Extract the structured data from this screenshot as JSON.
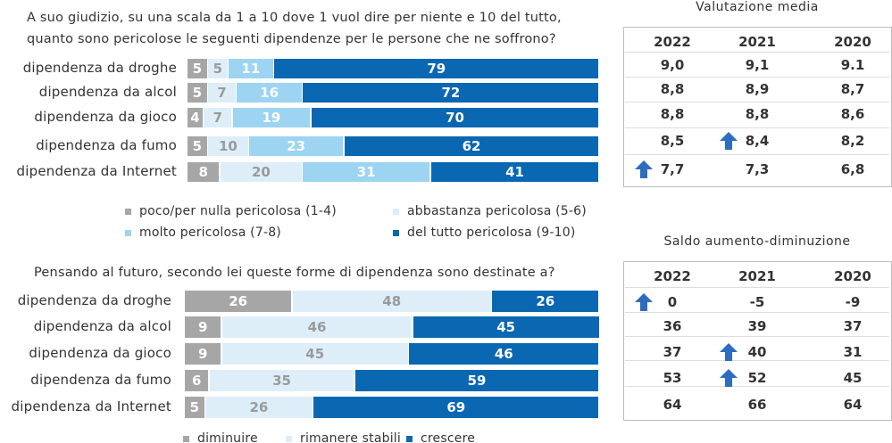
{
  "chart_data": [
    {
      "type": "bar",
      "orientation": "horizontal",
      "stacked": true,
      "title": "A suo giudizio, su una scala da 1 a 10 dove 1 vuol dire per niente e 10 del tutto, quanto sono pericolose le seguenti dipendenze per le persone che ne soffrono?",
      "categories": [
        "dipendenza da droghe",
        "dipendenza da alcol",
        "dipendenza da gioco",
        "dipendenza da fumo",
        "dipendenza da Internet"
      ],
      "series": [
        {
          "name": "poco/per nulla pericolosa (1-4)",
          "color": "#a6a6a6",
          "values": [
            5,
            5,
            4,
            5,
            8
          ]
        },
        {
          "name": "abbastanza pericolosa (5-6)",
          "color": "#ddeef9",
          "values": [
            5,
            7,
            7,
            10,
            20
          ]
        },
        {
          "name": "molto pericolosa (7-8)",
          "color": "#9dd4f2",
          "values": [
            11,
            16,
            19,
            23,
            31
          ]
        },
        {
          "name": "del tutto pericolosa (9-10)",
          "color": "#0a67b2",
          "values": [
            79,
            72,
            70,
            62,
            41
          ]
        }
      ]
    },
    {
      "type": "bar",
      "orientation": "horizontal",
      "stacked": true,
      "title": "Pensando al futuro, secondo lei queste forme di dipendenza sono destinate a?",
      "categories": [
        "dipendenza da droghe",
        "dipendenza da alcol",
        "dipendenza da gioco",
        "dipendenza da fumo",
        "dipendenza da Internet"
      ],
      "series": [
        {
          "name": "diminuire",
          "color": "#a6a6a6",
          "values": [
            26,
            9,
            9,
            6,
            5
          ]
        },
        {
          "name": "rimanere stabili",
          "color": "#ddeef9",
          "values": [
            48,
            46,
            45,
            35,
            26
          ]
        },
        {
          "name": "crescere",
          "color": "#0a67b2",
          "values": [
            26,
            45,
            46,
            59,
            69
          ]
        }
      ]
    }
  ],
  "tables": [
    {
      "title": "Valutazione media",
      "header": [
        "2022",
        "2021",
        "2020"
      ],
      "rows": [
        [
          "9,0",
          "9,1",
          "9.1"
        ],
        [
          "8,8",
          "8,9",
          "8,7"
        ],
        [
          "8,8",
          "8,8",
          "8,6"
        ],
        [
          "8,5",
          "8,4",
          "8,2"
        ],
        [
          "7,7",
          "7,3",
          "6,8"
        ]
      ],
      "up_arrows": [
        {
          "row": 3,
          "col": 1
        },
        {
          "row": 4,
          "col": 0
        }
      ]
    },
    {
      "title": "Saldo aumento-diminuzione",
      "header": [
        "2022",
        "2021",
        "2020"
      ],
      "rows": [
        [
          "0",
          "-5",
          "-9"
        ],
        [
          "36",
          "39",
          "37"
        ],
        [
          "37",
          "40",
          "31"
        ],
        [
          "53",
          "52",
          "45"
        ],
        [
          "64",
          "66",
          "64"
        ]
      ],
      "up_arrows": [
        {
          "row": 0,
          "col": 0
        },
        {
          "row": 2,
          "col": 1
        },
        {
          "row": 3,
          "col": 1
        }
      ]
    }
  ]
}
